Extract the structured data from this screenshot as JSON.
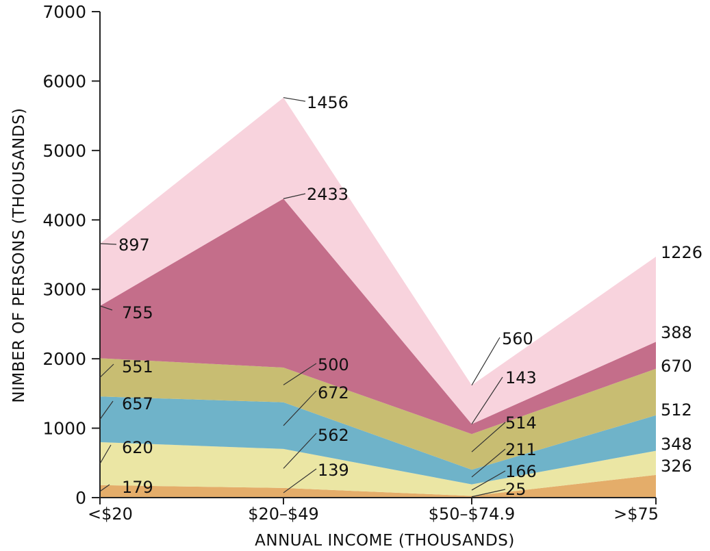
{
  "chart_data": {
    "type": "area",
    "stacked": true,
    "categories": [
      "<$20",
      "$20–$49",
      "$50–$74.9",
      ">$75"
    ],
    "xlabel": "ANNUAL INCOME (THOUSANDS)",
    "ylabel": "NIMBER OF PERSONS (THOUSANDS)",
    "ylim": [
      0,
      7000
    ],
    "yticks": [
      "0",
      "1000",
      "2000",
      "3000",
      "4000",
      "5000",
      "6000",
      "7000"
    ],
    "grid": false,
    "series": [
      {
        "values": [
          179,
          139,
          25,
          326
        ],
        "labels": [
          "179",
          "139",
          "25",
          "326"
        ],
        "color": "#e4ad6a"
      },
      {
        "values": [
          620,
          562,
          166,
          348
        ],
        "labels": [
          "620",
          "562",
          "166",
          "348"
        ],
        "color": "#ebe6a4"
      },
      {
        "values": [
          657,
          672,
          211,
          512
        ],
        "labels": [
          "657",
          "672",
          "211",
          "512"
        ],
        "color": "#6fb3c9"
      },
      {
        "values": [
          551,
          500,
          514,
          670
        ],
        "labels": [
          "551",
          "500",
          "514",
          "670"
        ],
        "color": "#c8bd72"
      },
      {
        "values": [
          755,
          2433,
          143,
          388
        ],
        "labels": [
          "755",
          "2433",
          "143",
          "388"
        ],
        "color": "#c46e8a"
      },
      {
        "values": [
          897,
          1456,
          560,
          1226
        ],
        "labels": [
          "897",
          "1456",
          "560",
          "1226"
        ],
        "color": "#f8d3dd"
      }
    ]
  }
}
